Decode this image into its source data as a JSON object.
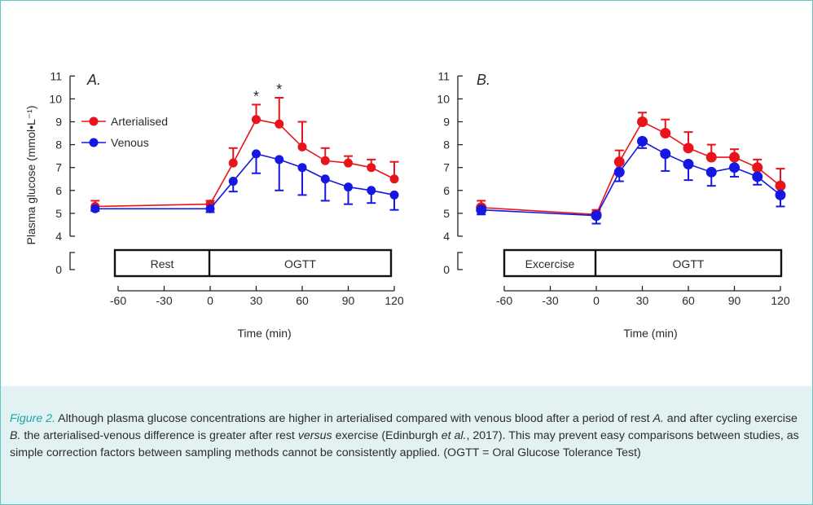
{
  "colors": {
    "arterialised": "#e8141b",
    "venous": "#1418e2",
    "accent": "#1aa7ab",
    "caption_bg": "#e2f1f1"
  },
  "ylabel": "Plasma glucose (mmol•L⁻¹)",
  "caption": {
    "label": "Figure 2.",
    "t1": " Although plasma glucose concentrations are higher in arterialised compared with venous blood after a period of rest ",
    "t2": "A.",
    "t3": " and after cycling exercise ",
    "t4": "B.",
    "t5": " the arterialised-venous difference is greater after rest ",
    "t6": "versus",
    "t7": " exercise (Edinburgh ",
    "t8": "et al.",
    "t9": ", 2017). This may prevent easy comparisons between studies, as simple correction factors between sampling methods cannot be consistently applied. (OGTT = Oral Glucose Tolerance Test)"
  },
  "chart_data": [
    {
      "type": "line",
      "panel": "A.",
      "xlabel": "Time (min)",
      "ylabel": "Plasma glucose (mmol•L⁻¹)",
      "xticks": [
        "-60",
        "-30",
        "0",
        "30",
        "60",
        "90",
        "120"
      ],
      "yticks": [
        "11",
        "10",
        "9",
        "8",
        "7",
        "6",
        "5",
        "4",
        "0"
      ],
      "ylim": [
        4,
        11
      ],
      "y_break": "axis break between 0 and 4",
      "legend": [
        "Arterialised",
        "Venous"
      ],
      "legend_position": "upper-left",
      "phases": [
        "Rest",
        "OGTT"
      ],
      "significance_markers": [
        {
          "x": 30,
          "label": "*"
        },
        {
          "x": 45,
          "label": "*"
        }
      ],
      "series": [
        {
          "name": "Arterialised",
          "x": [
            -75,
            0,
            15,
            30,
            45,
            60,
            75,
            90,
            105,
            120
          ],
          "y": [
            5.3,
            5.4,
            7.2,
            9.1,
            8.9,
            7.9,
            7.3,
            7.2,
            7.0,
            6.5
          ],
          "error_upper": [
            0.25,
            0.15,
            0.65,
            0.65,
            1.15,
            1.1,
            0.55,
            0.3,
            0.35,
            0.75
          ]
        },
        {
          "name": "Venous",
          "x": [
            -75,
            0,
            15,
            30,
            45,
            60,
            75,
            90,
            105,
            120
          ],
          "y": [
            5.2,
            5.2,
            6.4,
            7.6,
            7.35,
            7.0,
            6.5,
            6.15,
            6.0,
            5.8
          ],
          "error_lower": [
            0.1,
            0.15,
            0.45,
            0.85,
            1.35,
            1.2,
            0.95,
            0.75,
            0.55,
            0.65
          ]
        }
      ]
    },
    {
      "type": "line",
      "panel": "B.",
      "xlabel": "Time (min)",
      "xticks": [
        "-60",
        "-30",
        "0",
        "30",
        "60",
        "90",
        "120"
      ],
      "yticks": [
        "11",
        "10",
        "9",
        "8",
        "7",
        "6",
        "5",
        "4",
        "0"
      ],
      "ylim": [
        4,
        11
      ],
      "y_break": "axis break between 0 and 4",
      "phases": [
        "Excercise",
        "OGTT"
      ],
      "series": [
        {
          "name": "Arterialised",
          "x": [
            -75,
            0,
            15,
            30,
            45,
            60,
            75,
            90,
            105,
            120
          ],
          "y": [
            5.25,
            4.95,
            7.25,
            9.0,
            8.5,
            7.85,
            7.45,
            7.45,
            7.0,
            6.2
          ],
          "error_upper": [
            0.3,
            0.2,
            0.5,
            0.4,
            0.6,
            0.7,
            0.55,
            0.35,
            0.35,
            0.75
          ]
        },
        {
          "name": "Venous",
          "x": [
            -75,
            0,
            15,
            30,
            45,
            60,
            75,
            90,
            105,
            120
          ],
          "y": [
            5.15,
            4.9,
            6.8,
            8.15,
            7.6,
            7.15,
            6.8,
            7.0,
            6.6,
            5.8
          ],
          "error_lower": [
            0.2,
            0.35,
            0.4,
            0.3,
            0.75,
            0.7,
            0.6,
            0.4,
            0.35,
            0.5
          ]
        }
      ]
    }
  ]
}
